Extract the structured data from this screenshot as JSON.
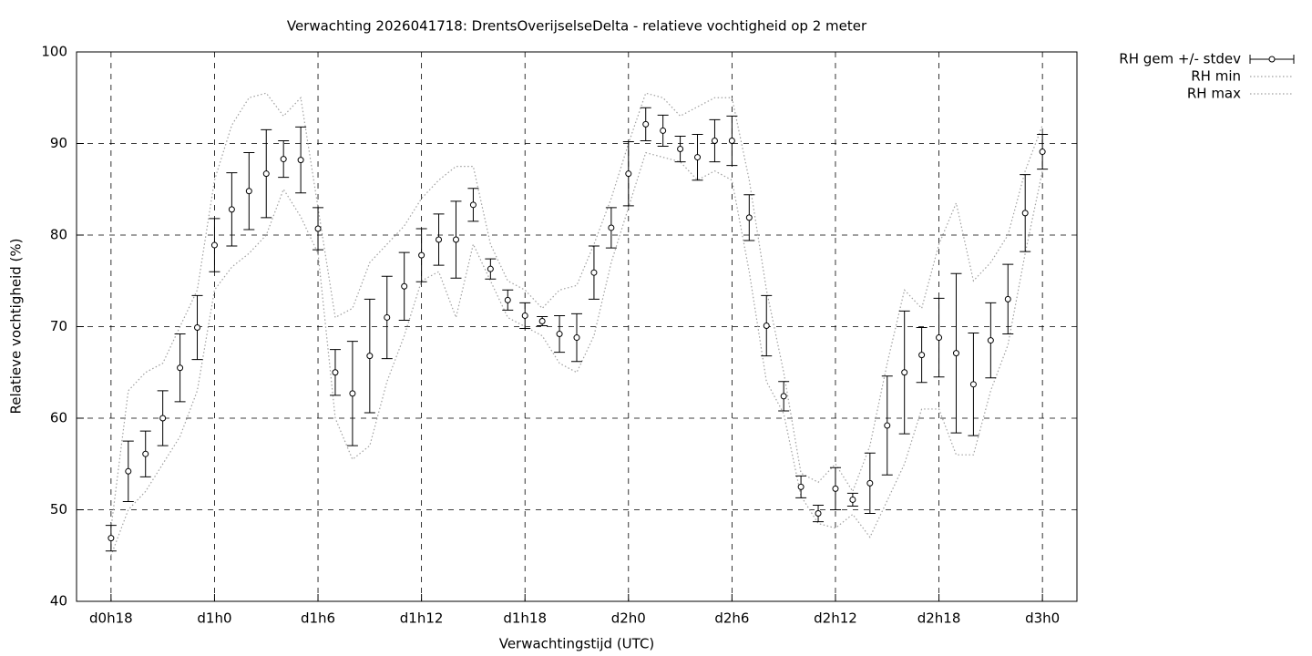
{
  "chart_data": {
    "type": "errorbar",
    "title": "Verwachting 2026041718: DrentsOverijselseDelta - relatieve vochtigheid op 2 meter",
    "x_label": "Verwachtingstijd (UTC)",
    "y_label": "Relatieve vochtigheid (%)",
    "x": [
      18,
      19,
      20,
      21,
      22,
      23,
      24,
      25,
      26,
      27,
      28,
      29,
      30,
      31,
      32,
      33,
      34,
      35,
      36,
      37,
      38,
      39,
      40,
      41,
      42,
      43,
      44,
      45,
      46,
      47,
      48,
      49,
      50,
      51,
      52,
      53,
      54,
      55,
      56,
      57,
      58,
      59,
      60,
      61,
      62,
      63,
      64,
      65,
      66,
      67,
      68,
      69,
      70,
      71,
      72
    ],
    "xlim": [
      16,
      74
    ],
    "xticks": [
      {
        "value": 18,
        "label": "d0h18"
      },
      {
        "value": 24,
        "label": "d1h0"
      },
      {
        "value": 30,
        "label": "d1h6"
      },
      {
        "value": 36,
        "label": "d1h12"
      },
      {
        "value": 42,
        "label": "d1h18"
      },
      {
        "value": 48,
        "label": "d2h0"
      },
      {
        "value": 54,
        "label": "d2h6"
      },
      {
        "value": 60,
        "label": "d2h12"
      },
      {
        "value": 66,
        "label": "d2h18"
      },
      {
        "value": 72,
        "label": "d3h0"
      }
    ],
    "ylim": [
      40,
      100
    ],
    "yticks": [
      40,
      50,
      60,
      70,
      80,
      90,
      100
    ],
    "grid": true,
    "legend": "outside-top-right",
    "series": [
      {
        "name": "RH gem +/- stdev",
        "color": "#000000",
        "values": [
          46.9,
          54.2,
          56.1,
          60.0,
          65.5,
          69.9,
          78.9,
          82.8,
          84.8,
          86.7,
          88.3,
          88.2,
          80.7,
          65.0,
          62.7,
          66.8,
          71.0,
          74.4,
          77.8,
          79.5,
          79.5,
          83.3,
          76.3,
          72.9,
          71.2,
          70.6,
          69.2,
          68.8,
          75.9,
          80.8,
          86.7,
          92.1,
          91.4,
          89.4,
          88.5,
          90.3,
          90.3,
          81.9,
          70.1,
          62.4,
          52.5,
          49.6,
          52.3,
          51.1,
          52.9,
          59.2,
          65.0,
          66.9,
          68.8,
          67.1,
          63.7,
          68.5,
          73.0,
          82.4,
          89.1
        ],
        "errors": [
          1.4,
          3.3,
          2.5,
          3.0,
          3.7,
          3.5,
          2.9,
          4.0,
          4.2,
          4.8,
          2.0,
          3.6,
          2.3,
          2.5,
          5.7,
          6.2,
          4.5,
          3.7,
          2.9,
          2.8,
          4.2,
          1.8,
          1.1,
          1.1,
          1.4,
          0.5,
          2.0,
          2.6,
          2.9,
          2.2,
          3.5,
          1.8,
          1.7,
          1.4,
          2.5,
          2.3,
          2.7,
          2.5,
          3.3,
          1.6,
          1.2,
          0.9,
          2.3,
          0.7,
          3.3,
          5.4,
          6.7,
          3.0,
          4.3,
          8.7,
          5.6,
          4.1,
          3.8,
          4.2,
          1.9
        ]
      },
      {
        "name": "RH min",
        "color": "#a0a0a0",
        "values": [
          45,
          50,
          52,
          55,
          58,
          63,
          74,
          76.5,
          78,
          80,
          85,
          82,
          78,
          60,
          55.5,
          57,
          64,
          69,
          75,
          76,
          71,
          79,
          75,
          71,
          70,
          69,
          66,
          65,
          69,
          77,
          83,
          89,
          88.5,
          88,
          86,
          87,
          86,
          76,
          64,
          60.5,
          51.5,
          48.5,
          48,
          49.5,
          47,
          51,
          55,
          61,
          61,
          56,
          56,
          63,
          68,
          78,
          87
        ]
      },
      {
        "name": "RH max",
        "color": "#a0a0a0",
        "values": [
          48,
          63,
          65,
          66,
          70,
          74,
          86,
          92,
          95,
          95.5,
          93,
          95,
          83,
          71,
          72,
          77,
          79,
          81,
          84,
          86,
          87.5,
          87.5,
          79,
          75,
          74,
          72,
          74,
          74.5,
          79,
          84,
          90,
          95.5,
          95,
          93,
          94,
          95,
          95,
          86,
          74,
          65,
          54,
          53,
          55,
          52,
          57,
          66,
          74,
          72,
          79,
          83.5,
          75,
          77,
          80,
          87,
          92
        ]
      }
    ]
  }
}
